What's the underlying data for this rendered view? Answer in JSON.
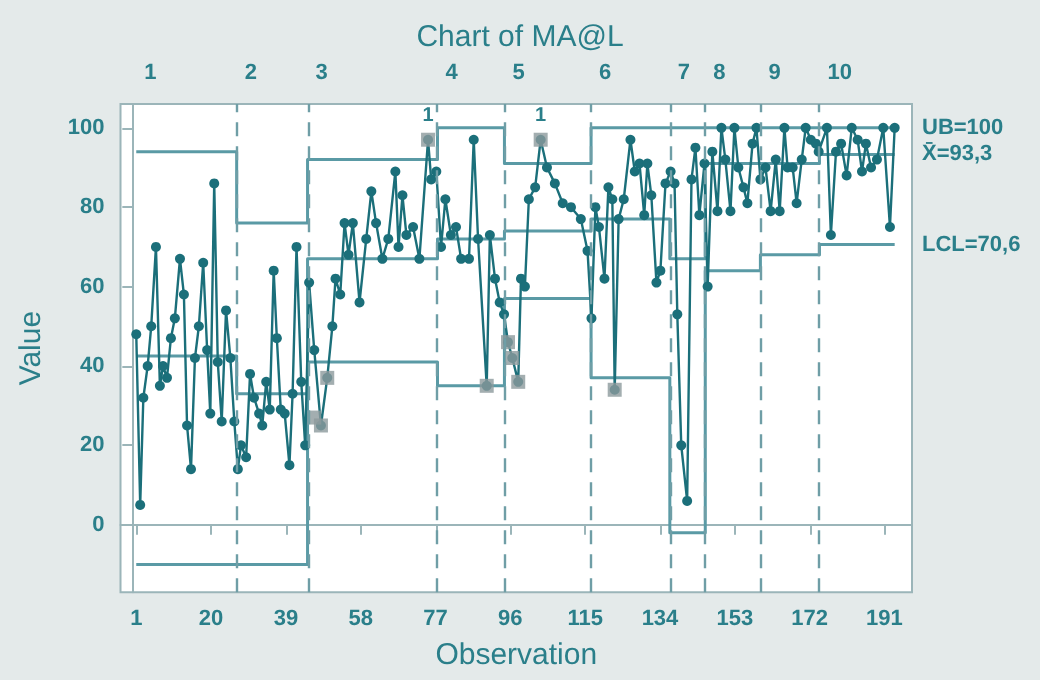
{
  "chart_data": {
    "type": "line",
    "title": "Chart of MA@L",
    "xlabel": "Observation",
    "ylabel": "Value",
    "xlim": [
      -3,
      198
    ],
    "xticks": [
      1,
      20,
      39,
      58,
      77,
      96,
      115,
      134,
      153,
      172,
      191
    ],
    "ylim": [
      -17,
      106
    ],
    "yticks": [
      0,
      20,
      40,
      60,
      80,
      100
    ],
    "grid": false,
    "series": [
      {
        "marker": "circle",
        "color": "#1b6f7a",
        "x": [
          1,
          2,
          2.8,
          3.9,
          4.8,
          6,
          7,
          7.8,
          8.8,
          9.8,
          10.8,
          12.1,
          13.1,
          13.9,
          14.9,
          15.9,
          16.9,
          18,
          19,
          19.8,
          20.8,
          21.7,
          22.7,
          23.8,
          24.9,
          25.9,
          26.8,
          27.6,
          28.9,
          29.9,
          30.9,
          32.2,
          33,
          34,
          34.9,
          35.9,
          36.7,
          37.7,
          38.7,
          39.9,
          40.7,
          41.7,
          42.9,
          43.9,
          44.9,
          46.2,
          47.9,
          49.5,
          50.8,
          51.6,
          52.8,
          53.9,
          54.9,
          56,
          57.7,
          59.4,
          60.7,
          61.9,
          63.5,
          65,
          66.8,
          67.6,
          68.6,
          69.6,
          71.3,
          72.9,
          75.1,
          75.9,
          77.2,
          78.4,
          79.5,
          80.9,
          82.2,
          83.5,
          85.5,
          86.7,
          87.8,
          90,
          90.8,
          92.1,
          93.3,
          94.4,
          95.4,
          96.5,
          98,
          98.7,
          99.7,
          100.7,
          102.3,
          103.7,
          105.3,
          107.3,
          109.3,
          111.4,
          113.9,
          115.6,
          116.6,
          117.6,
          118.5,
          119.9,
          120.9,
          121.9,
          122.5,
          123.5,
          124.8,
          126.5,
          127.6,
          128.8,
          130,
          130.8,
          131.8,
          133.1,
          134.1,
          135.4,
          136.7,
          137.7,
          138.4,
          139.4,
          140.9,
          142,
          143,
          144,
          145.3,
          146.1,
          147.3,
          148.6,
          149.6,
          150.6,
          151.9,
          152.9,
          153.9,
          155.2,
          156.2,
          157.5,
          158.5,
          159.5,
          160.8,
          162.1,
          163.4,
          164.4,
          165.6,
          166.4,
          167.7,
          168.7,
          170,
          171,
          172.3,
          173.6,
          174.3,
          176.4,
          177.4,
          178.7,
          180,
          181.4,
          182.7,
          184.2,
          185.3,
          186.3,
          187.6,
          189.1,
          190.7,
          192.4,
          193.6
        ],
        "values": [
          48,
          5,
          32,
          40,
          50,
          70,
          35,
          40,
          37,
          47,
          52,
          67,
          58,
          25,
          14,
          42,
          50,
          66,
          44,
          28,
          86,
          41,
          26,
          54,
          42,
          26,
          14,
          20,
          17,
          38,
          32,
          28,
          25,
          36,
          29,
          64,
          47,
          29,
          28,
          15,
          33,
          70,
          36,
          20,
          61,
          44,
          25,
          37,
          50,
          62,
          58,
          76,
          68,
          76,
          56,
          72,
          84,
          76,
          67,
          72,
          89,
          70,
          83,
          73,
          75,
          67,
          97,
          87,
          89,
          70,
          82,
          73,
          75,
          67,
          67,
          97,
          72,
          35,
          73,
          62,
          56,
          53,
          46,
          42,
          36,
          62,
          60,
          82,
          85,
          97,
          90,
          86,
          81,
          80,
          77,
          69,
          52,
          80,
          75,
          62,
          85,
          82,
          34,
          77,
          82,
          97,
          89,
          91,
          78,
          91,
          83,
          61,
          64,
          86,
          89,
          86,
          53,
          20,
          6,
          87,
          95,
          78,
          91,
          60,
          94,
          79,
          100,
          92,
          79,
          100,
          90,
          85,
          81,
          96,
          100,
          87,
          90,
          79,
          92,
          79,
          100,
          90,
          90,
          81,
          92,
          100,
          97,
          96,
          94,
          100,
          73,
          94,
          96,
          88,
          100,
          97,
          89,
          96,
          90,
          92,
          100,
          75,
          100
        ]
      },
      {
        "type": "scatter",
        "marker": "square",
        "color": "#8c9a9c",
        "x": [
          46.2,
          47.9,
          49.5,
          75.1,
          90,
          95.4,
          96.5,
          98,
          103.7,
          122.5
        ],
        "values": [
          27,
          25,
          37,
          97,
          35,
          46,
          42,
          36,
          97,
          34
        ]
      },
      {
        "type": "line",
        "marker": "none",
        "color": "#5a9aa5",
        "x": [
          1,
          26.5,
          26.5,
          44.5,
          44.5,
          77.5,
          77.5,
          94.5,
          94.5,
          116.5,
          116.5,
          136.5,
          136.5,
          145.5,
          145.5,
          159.5,
          159.5,
          174.5,
          174.5,
          193.6
        ],
        "values": [
          94,
          94,
          76,
          76,
          92,
          92,
          100,
          100,
          91,
          91,
          100,
          100,
          100,
          100,
          100,
          100,
          100,
          100,
          100,
          100
        ]
      },
      {
        "type": "line",
        "marker": "none",
        "color": "#5a9aa5",
        "x": [
          1,
          26.5,
          26.5,
          44.5,
          44.5,
          77.5,
          77.5,
          94.5,
          94.5,
          116.5,
          116.5,
          136.5,
          136.5,
          145.5,
          145.5,
          159.5,
          159.5,
          174.5,
          174.5,
          193.6
        ],
        "values": [
          42.5,
          42.5,
          33,
          33,
          67,
          67,
          72,
          72,
          74,
          74,
          77,
          77,
          67,
          67,
          91,
          91,
          91,
          91,
          93.3,
          93.3
        ]
      },
      {
        "type": "line",
        "marker": "none",
        "color": "#5a9aa5",
        "x": [
          1,
          26.5,
          26.5,
          44.5,
          44.5,
          77.5,
          77.5,
          94.5,
          94.5,
          116.5,
          116.5,
          136.5,
          136.5,
          145.5,
          145.5,
          159.5,
          159.5,
          174.5,
          174.5,
          193.6
        ],
        "values": [
          -10,
          -10,
          -10,
          -10,
          41,
          41,
          35,
          35,
          57,
          57,
          37,
          37,
          -2,
          -2,
          64,
          64,
          68,
          68,
          70.6,
          70.6
        ]
      }
    ],
    "ref_lines": [
      {
        "axis": "x",
        "value": 26.5,
        "color": "#6f9ea6",
        "line_style": "dashed"
      },
      {
        "axis": "x",
        "value": 44.5,
        "color": "#6f9ea6",
        "line_style": "dashed"
      },
      {
        "axis": "x",
        "value": 77.5,
        "color": "#6f9ea6",
        "line_style": "dashed"
      },
      {
        "axis": "x",
        "value": 94.5,
        "color": "#6f9ea6",
        "line_style": "dashed"
      },
      {
        "axis": "x",
        "value": 116.5,
        "color": "#6f9ea6",
        "line_style": "dashed"
      },
      {
        "axis": "x",
        "value": 136.5,
        "color": "#6f9ea6",
        "line_style": "dashed"
      },
      {
        "axis": "x",
        "value": 145.5,
        "color": "#6f9ea6",
        "line_style": "dashed"
      },
      {
        "axis": "x",
        "value": 159.5,
        "color": "#6f9ea6",
        "line_style": "dashed"
      },
      {
        "axis": "x",
        "value": 174.5,
        "color": "#6f9ea6",
        "line_style": "dashed"
      }
    ],
    "annotations": [
      "1",
      "2",
      "3",
      "4",
      "5",
      "6",
      "7",
      "8",
      "9",
      "10",
      {
        "text": "1",
        "x": 75.1,
        "y": 97
      },
      {
        "text": "1",
        "x": 103.7,
        "y": 97
      },
      {
        "text": "UB=100",
        "x": 193.6,
        "y": 100
      },
      {
        "text": "X̄=93,3",
        "x": 193.6,
        "y": 93.3
      },
      {
        "text": "LCL=70,6",
        "x": 193.6,
        "y": 70.6
      }
    ]
  }
}
